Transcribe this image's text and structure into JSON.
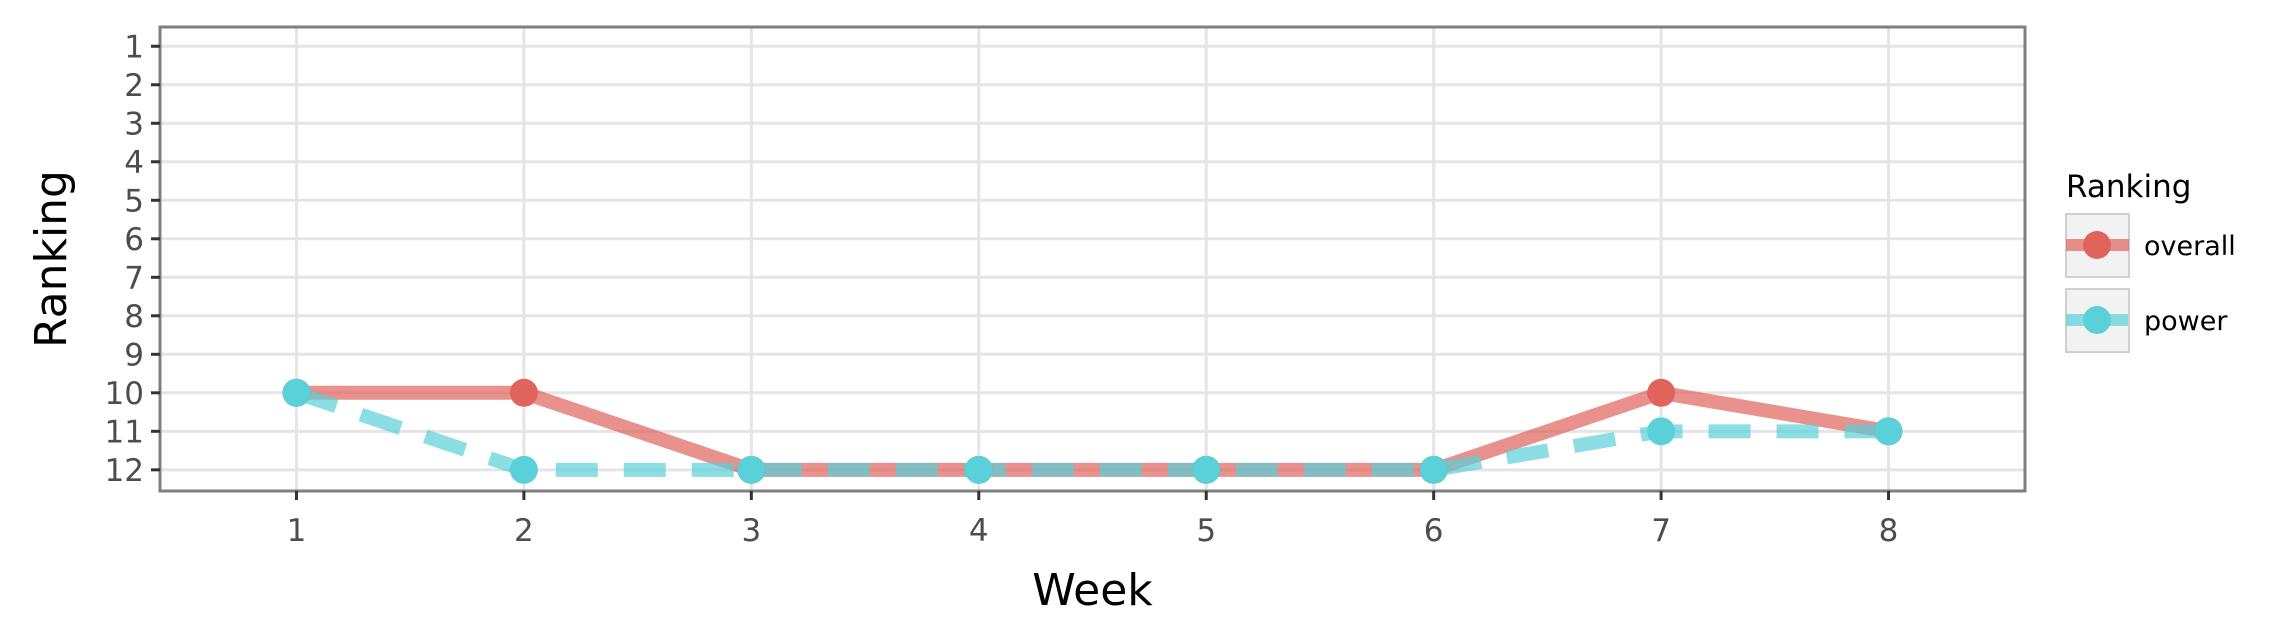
{
  "chart_data": {
    "type": "line",
    "xlabel": "Week",
    "ylabel": "Ranking",
    "x": [
      1,
      2,
      3,
      4,
      5,
      6,
      7,
      8
    ],
    "xlim": [
      0.4,
      8.6
    ],
    "ylim": [
      12.55,
      0.5
    ],
    "y_reversed": true,
    "xticks": [
      1,
      2,
      3,
      4,
      5,
      6,
      7,
      8
    ],
    "yticks": [
      1,
      2,
      3,
      4,
      5,
      6,
      7,
      8,
      9,
      10,
      11,
      12
    ],
    "grid": true,
    "legend": {
      "title": "Ranking",
      "position": "right"
    },
    "series": [
      {
        "name": "overall",
        "values": [
          10,
          10,
          12,
          12,
          12,
          12,
          10,
          11
        ],
        "color": "#e0635c",
        "linestyle": "solid"
      },
      {
        "name": "power",
        "values": [
          10,
          12,
          12,
          12,
          12,
          12,
          11,
          11
        ],
        "color": "#5ad0d8",
        "linestyle": "dashed"
      }
    ]
  }
}
